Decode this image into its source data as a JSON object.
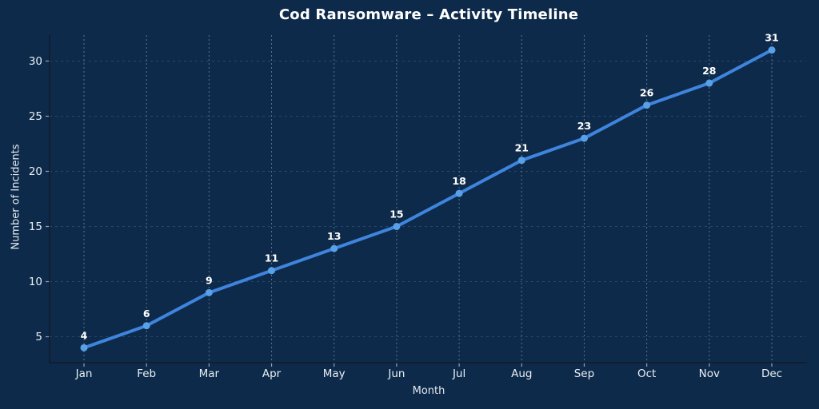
{
  "chart_data": {
    "type": "line",
    "title": "Cod Ransomware – Activity Timeline",
    "xlabel": "Month",
    "ylabel": "Number of Incidents",
    "categories": [
      "Jan",
      "Feb",
      "Mar",
      "Apr",
      "May",
      "Jun",
      "Jul",
      "Aug",
      "Sep",
      "Oct",
      "Nov",
      "Dec"
    ],
    "series": [
      {
        "name": "Incidents",
        "values": [
          4,
          6,
          9,
          11,
          13,
          15,
          18,
          21,
          23,
          26,
          28,
          31
        ]
      }
    ],
    "point_labels": [
      "4",
      "6",
      "9",
      "11",
      "13",
      "15",
      "18",
      "21",
      "23",
      "26",
      "28",
      "31"
    ],
    "yticks": [
      5,
      10,
      15,
      20,
      25,
      30
    ],
    "ylim": [
      2.65,
      32.35
    ],
    "grid": "dashed",
    "legend": "none",
    "colors": {
      "background": "#0d2a4a",
      "line": "#3f84dd",
      "marker": "#58a0e8",
      "point_label": "#ffffff",
      "title_text": "#ffffff",
      "tick_text": "#eaeff5",
      "axis_label_text": "#e2e8f0",
      "grid_vertical": "#5f718a",
      "grid_horizontal": "#26476b",
      "spine": "#101b2b",
      "tick_mark": "#93a1b3"
    }
  }
}
